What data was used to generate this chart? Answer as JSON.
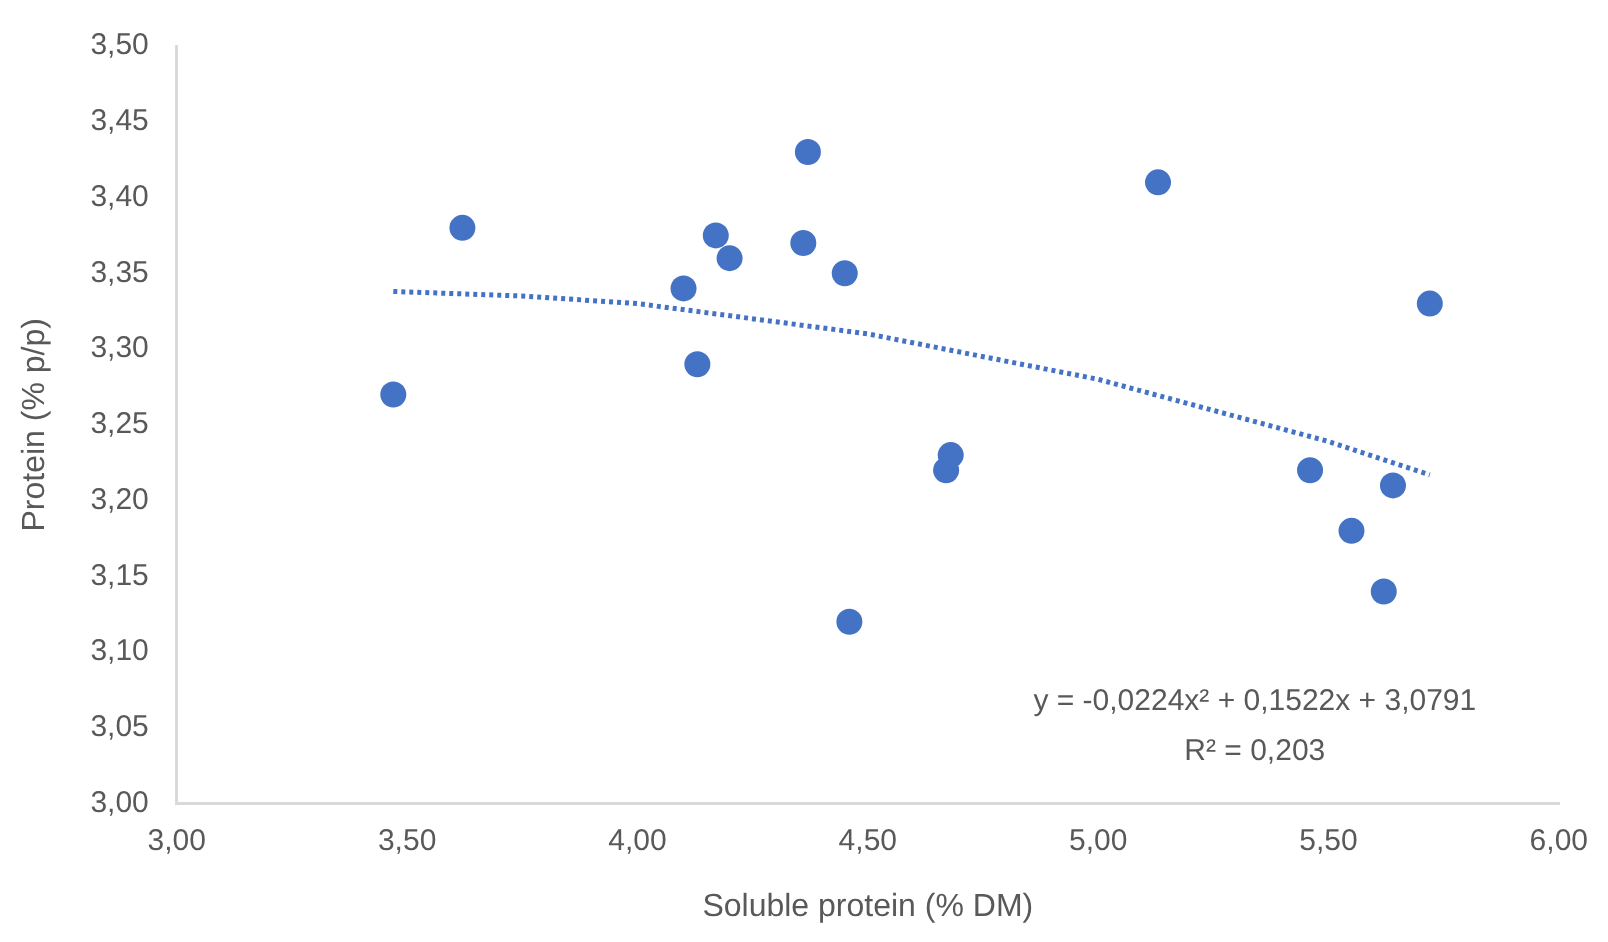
{
  "chart_data": {
    "type": "scatter",
    "xlabel": "Soluble protein (% DM)",
    "ylabel": "Protein (% p/p)",
    "xlim": [
      3,
      6
    ],
    "xticks": [
      {
        "value": 3,
        "label": "3,00"
      },
      {
        "value": 3.5,
        "label": "3,50"
      },
      {
        "value": 4,
        "label": "4,00"
      },
      {
        "value": 4.5,
        "label": "4,50"
      },
      {
        "value": 5,
        "label": "5,00"
      },
      {
        "value": 5.5,
        "label": "5,50"
      },
      {
        "value": 6,
        "label": "6,00"
      }
    ],
    "ylim": [
      3,
      3.5
    ],
    "yticks": [
      {
        "value": 3,
        "label": "3,00"
      },
      {
        "value": 3.05,
        "label": "3,05"
      },
      {
        "value": 3.1,
        "label": "3,10"
      },
      {
        "value": 3.15,
        "label": "3,15"
      },
      {
        "value": 3.2,
        "label": "3,20"
      },
      {
        "value": 3.25,
        "label": "3,25"
      },
      {
        "value": 3.3,
        "label": "3,30"
      },
      {
        "value": 3.35,
        "label": "3,35"
      },
      {
        "value": 3.4,
        "label": "3,40"
      },
      {
        "value": 3.45,
        "label": "3,45"
      },
      {
        "value": 3.5,
        "label": "3,50"
      }
    ],
    "grid": false,
    "legend": false,
    "marker": "circle",
    "series": [
      {
        "type": "scatter",
        "color": "#4472c4",
        "x": [
          3.47,
          3.62,
          4.1,
          4.13,
          4.17,
          4.2,
          4.37,
          4.36,
          4.45,
          4.46,
          4.68,
          4.67,
          5.13,
          5.46,
          5.55,
          5.62,
          5.64,
          5.72
        ],
        "values": [
          3.27,
          3.38,
          3.34,
          3.29,
          3.375,
          3.36,
          3.43,
          3.37,
          3.35,
          3.12,
          3.23,
          3.22,
          3.41,
          3.22,
          3.18,
          3.14,
          3.21,
          3.33
        ]
      },
      {
        "type": "line",
        "color": "#4472c4",
        "marker": "none",
        "line_style": "dotted",
        "x": [
          3.47,
          3.75,
          4.0,
          4.5,
          5.0,
          5.5,
          5.72
        ],
        "values": [
          3.338,
          3.335,
          3.33,
          3.31,
          3.28,
          3.239,
          3.217
        ]
      }
    ],
    "annotations": [
      "y = -0,0224x² + 0,1522x + 3,0791",
      "R² = 0,203"
    ]
  }
}
